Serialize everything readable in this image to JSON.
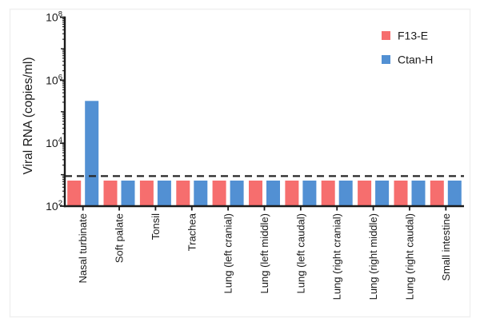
{
  "chart_data": {
    "type": "bar",
    "scale": "log-y",
    "title": "",
    "xlabel": "",
    "ylabel": "Viral RNA (copies/ml)",
    "ylim": [
      100,
      100000000
    ],
    "grid": false,
    "legend_position": "top-right",
    "y_ticks": [
      {
        "value": 100,
        "base": "10",
        "exp": "2"
      },
      {
        "value": 10000,
        "base": "10",
        "exp": "4"
      },
      {
        "value": 1000000,
        "base": "10",
        "exp": "6"
      },
      {
        "value": 100000000,
        "base": "10",
        "exp": "8"
      }
    ],
    "categories": [
      "Nasal turbinate",
      "Soft palate",
      "Tonsil",
      "Trachea",
      "Lung (left cranial)",
      "Lung (left middle)",
      "Lung (left caudal)",
      "Lung (right cranial)",
      "Lung (right middle)",
      "Lung (right caudal)",
      "Small intestine"
    ],
    "series": [
      {
        "name": "F13-E",
        "color": "#F66E6E",
        "values": [
          650,
          650,
          650,
          650,
          650,
          650,
          650,
          650,
          650,
          650,
          650
        ]
      },
      {
        "name": "Ctan-H",
        "color": "#5290D3",
        "values": [
          220000,
          650,
          650,
          650,
          650,
          650,
          650,
          650,
          650,
          650,
          650
        ]
      }
    ],
    "dashed_line_value": 900,
    "axis_color": "#1a1a1a",
    "dashed_line_color": "#262626"
  }
}
